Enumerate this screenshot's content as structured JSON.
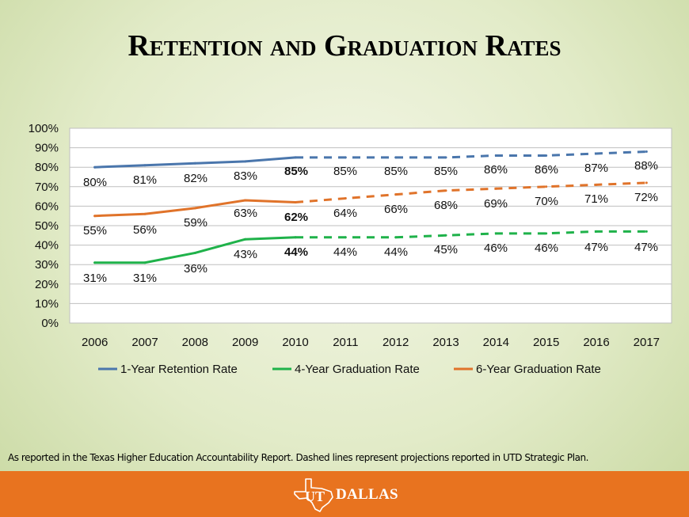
{
  "page": {
    "title": "Retention and Graduation Rates",
    "footnote": "As reported in the Texas Higher Education Accountability Report.  Dashed lines represent projections reported in UTD Strategic Plan.",
    "logo_text_ut": "UT",
    "logo_text": "DALLAS"
  },
  "chart_data": {
    "type": "line",
    "categories": [
      "2006",
      "2007",
      "2008",
      "2009",
      "2010",
      "2011",
      "2012",
      "2013",
      "2014",
      "2015",
      "2016",
      "2017"
    ],
    "yticks": [
      "0%",
      "10%",
      "20%",
      "30%",
      "40%",
      "50%",
      "60%",
      "70%",
      "80%",
      "90%",
      "100%"
    ],
    "ylim": [
      0,
      100
    ],
    "grid": true,
    "legend_position": "bottom",
    "projection_start_index": 4,
    "series": [
      {
        "name": "1-Year Retention Rate",
        "color": "#4a76ac",
        "values": [
          80,
          81,
          82,
          83,
          85,
          85,
          85,
          85,
          86,
          86,
          87,
          88
        ],
        "labels": [
          "80%",
          "81%",
          "82%",
          "83%",
          "85%",
          "85%",
          "85%",
          "85%",
          "86%",
          "86%",
          "87%",
          "88%"
        ]
      },
      {
        "name": "4-Year Graduation Rate",
        "color": "#1fb24a",
        "values": [
          31,
          31,
          36,
          43,
          44,
          44,
          44,
          45,
          46,
          46,
          47,
          47
        ],
        "labels": [
          "31%",
          "31%",
          "36%",
          "43%",
          "44%",
          "44%",
          "44%",
          "45%",
          "46%",
          "46%",
          "47%",
          "47%"
        ]
      },
      {
        "name": "6-Year Graduation Rate",
        "color": "#e0732a",
        "values": [
          55,
          56,
          59,
          63,
          62,
          64,
          66,
          68,
          69,
          70,
          71,
          72
        ],
        "labels": [
          "55%",
          "56%",
          "59%",
          "63%",
          "62%",
          "64%",
          "66%",
          "68%",
          "69%",
          "70%",
          "71%",
          "72%"
        ]
      }
    ],
    "legend_order": [
      0,
      1,
      2
    ]
  }
}
